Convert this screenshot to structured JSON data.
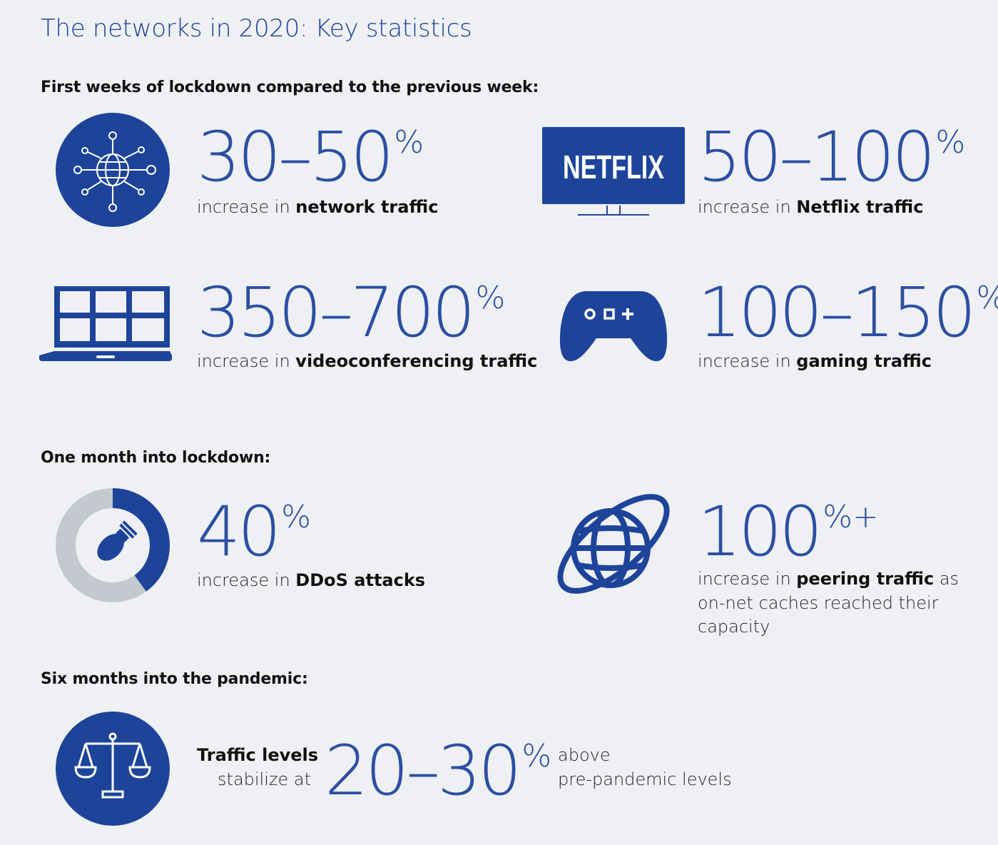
{
  "title": "The networks in 2020: Key statistics",
  "sections": {
    "first_weeks": "First weeks of lockdown compared to the previous week:",
    "one_month": "One month into lockdown:",
    "six_months": "Six months into the pandemic:"
  },
  "stats": {
    "network": {
      "value": "30–50",
      "unit": "%",
      "prefix": "increase in ",
      "bold": "network traffic"
    },
    "netflix": {
      "value": "50–100",
      "unit": "%",
      "prefix": "increase in ",
      "bold": "Netflix traffic",
      "logo_text": "NETFLIX"
    },
    "video": {
      "value": "350–700",
      "unit": "%",
      "prefix": "increase in ",
      "bold": "videoconferencing traffic"
    },
    "gaming": {
      "value": "100–150",
      "unit": "%",
      "prefix": "increase in ",
      "bold": "gaming traffic"
    },
    "ddos": {
      "value": "40",
      "unit": "%",
      "prefix": "increase in ",
      "bold": "DDoS attacks",
      "donut_fraction": 0.4
    },
    "peering": {
      "value": "100",
      "unit": "%+",
      "prefix": "increase in ",
      "bold": "peering traffic",
      "suffix": " as",
      "line2": "on-net caches reached their",
      "line3": "capacity"
    },
    "stabilize": {
      "bold": "Traffic levels",
      "line2": "stabilize at",
      "value": "20–30",
      "unit": "%",
      "after1": "above",
      "after2": "pre-pandemic levels"
    }
  },
  "colors": {
    "accent": "#1e449a",
    "light_accent": "#2b4fa2",
    "donut_gray": "#c4c8cf",
    "background": "#eff0f4"
  },
  "icons": [
    "globe-network-icon",
    "netflix-tv-icon",
    "laptop-video-grid-icon",
    "gamepad-icon",
    "ddos-donut-icon",
    "globe-orbit-icon",
    "scales-icon"
  ]
}
